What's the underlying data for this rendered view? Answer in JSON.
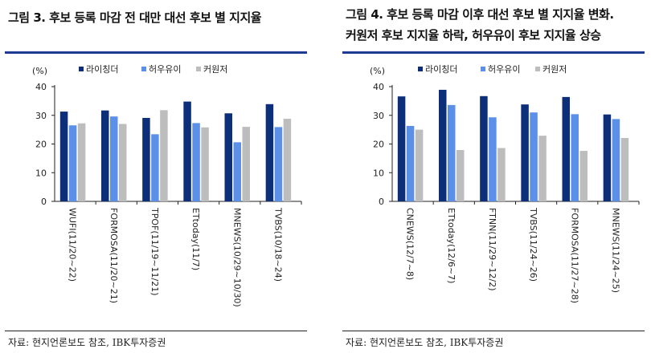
{
  "figures": [
    {
      "title_lines": [
        "그림 3. 후보 등록 마감 전 대만 대선 후보 별 지지율"
      ],
      "source": "자료: 현지언론보도 참조, IBK투자증권"
    },
    {
      "title_lines": [
        "그림 4. 후보 등록 마감 이후 대선 후보 별 지지율 변화.",
        "커원저 후보 지지율 하락, 허우유이 후보 지지율 상승"
      ],
      "source": "자료: 현지언론보도 참조, IBK투자증권"
    }
  ],
  "chart_data": [
    {
      "type": "bar",
      "title": "",
      "unit_label": "(%)",
      "ylim": [
        0,
        40
      ],
      "yticks": [
        0,
        10,
        20,
        30,
        40
      ],
      "grid": false,
      "legend_position": "top",
      "categories": [
        "WUFI(11/20~22)",
        "FORMOSA(11/20~21)",
        "TPOF(11/19~11/21)",
        "ETtoday(11/7)",
        "MNEWS(10/29~10/30)",
        "TVBS(10/18~24)"
      ],
      "series": [
        {
          "name": "라이칭더",
          "color": "#0d2f7a",
          "values": [
            31.3,
            31.7,
            29.1,
            34.8,
            30.7,
            33.9
          ]
        },
        {
          "name": "허우유이",
          "color": "#5b8fe8",
          "values": [
            26.5,
            29.6,
            23.4,
            27.3,
            20.6,
            25.9
          ]
        },
        {
          "name": "커원저",
          "color": "#bdbdbd",
          "values": [
            27.2,
            27.0,
            31.8,
            25.8,
            26.0,
            28.8
          ]
        }
      ]
    },
    {
      "type": "bar",
      "title": "",
      "unit_label": "(%)",
      "ylim": [
        0,
        40
      ],
      "yticks": [
        0,
        10,
        20,
        30,
        40
      ],
      "grid": false,
      "legend_position": "top",
      "categories": [
        "CNEWS(12/7~8)",
        "ETtoday(12/6~7)",
        "FTNN(11/29~12/2)",
        "TVBS(11/24~26)",
        "FORMOSA(11/27~28)",
        "MNEWS(11/24~25)"
      ],
      "series": [
        {
          "name": "라이칭더",
          "color": "#0d2f7a",
          "values": [
            36.6,
            38.9,
            36.7,
            33.8,
            36.4,
            30.3
          ]
        },
        {
          "name": "허우유이",
          "color": "#5b8fe8",
          "values": [
            26.3,
            33.6,
            29.3,
            31.0,
            30.4,
            28.7
          ]
        },
        {
          "name": "커원저",
          "color": "#bdbdbd",
          "values": [
            25.0,
            17.9,
            18.6,
            22.9,
            17.6,
            22.1
          ]
        }
      ]
    }
  ]
}
